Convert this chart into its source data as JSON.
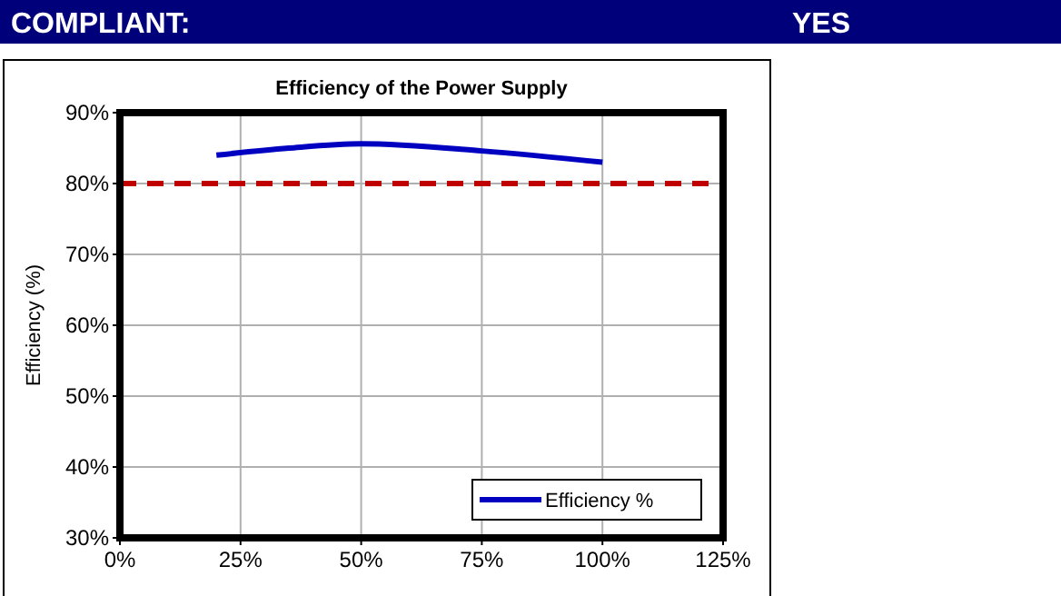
{
  "chart_data": {
    "type": "line",
    "title": "Efficiency of the Power Supply",
    "ylabel": "Efficiency (%)",
    "annotations": [
      "COMPLIANT:",
      "YES"
    ],
    "x": [
      20,
      35,
      50,
      75,
      100
    ],
    "series": [
      {
        "name": "Efficiency %",
        "color": "#0000c0",
        "values": [
          84.0,
          85.0,
          85.6,
          84.6,
          83.0
        ]
      }
    ],
    "xlim": [
      0,
      125
    ],
    "xticks": [
      {
        "value": 0,
        "label": "0%"
      },
      {
        "value": 25,
        "label": "25%"
      },
      {
        "value": 50,
        "label": "50%"
      },
      {
        "value": 75,
        "label": "75%"
      },
      {
        "value": 100,
        "label": "100%"
      },
      {
        "value": 125,
        "label": "125%"
      }
    ],
    "ylim": [
      30,
      90
    ],
    "yticks": [
      {
        "value": 30,
        "label": "30%"
      },
      {
        "value": 40,
        "label": "40%"
      },
      {
        "value": 50,
        "label": "50%"
      },
      {
        "value": 60,
        "label": "60%"
      },
      {
        "value": 70,
        "label": "70%"
      },
      {
        "value": 80,
        "label": "80%"
      },
      {
        "value": 90,
        "label": "90%"
      }
    ],
    "ref_lines": [
      {
        "axis": "y",
        "value": 80,
        "color": "#c00000",
        "line_style": "dashed"
      }
    ],
    "grid": true,
    "legend": "bottom right",
    "marker": "none",
    "line_style": "solid"
  }
}
